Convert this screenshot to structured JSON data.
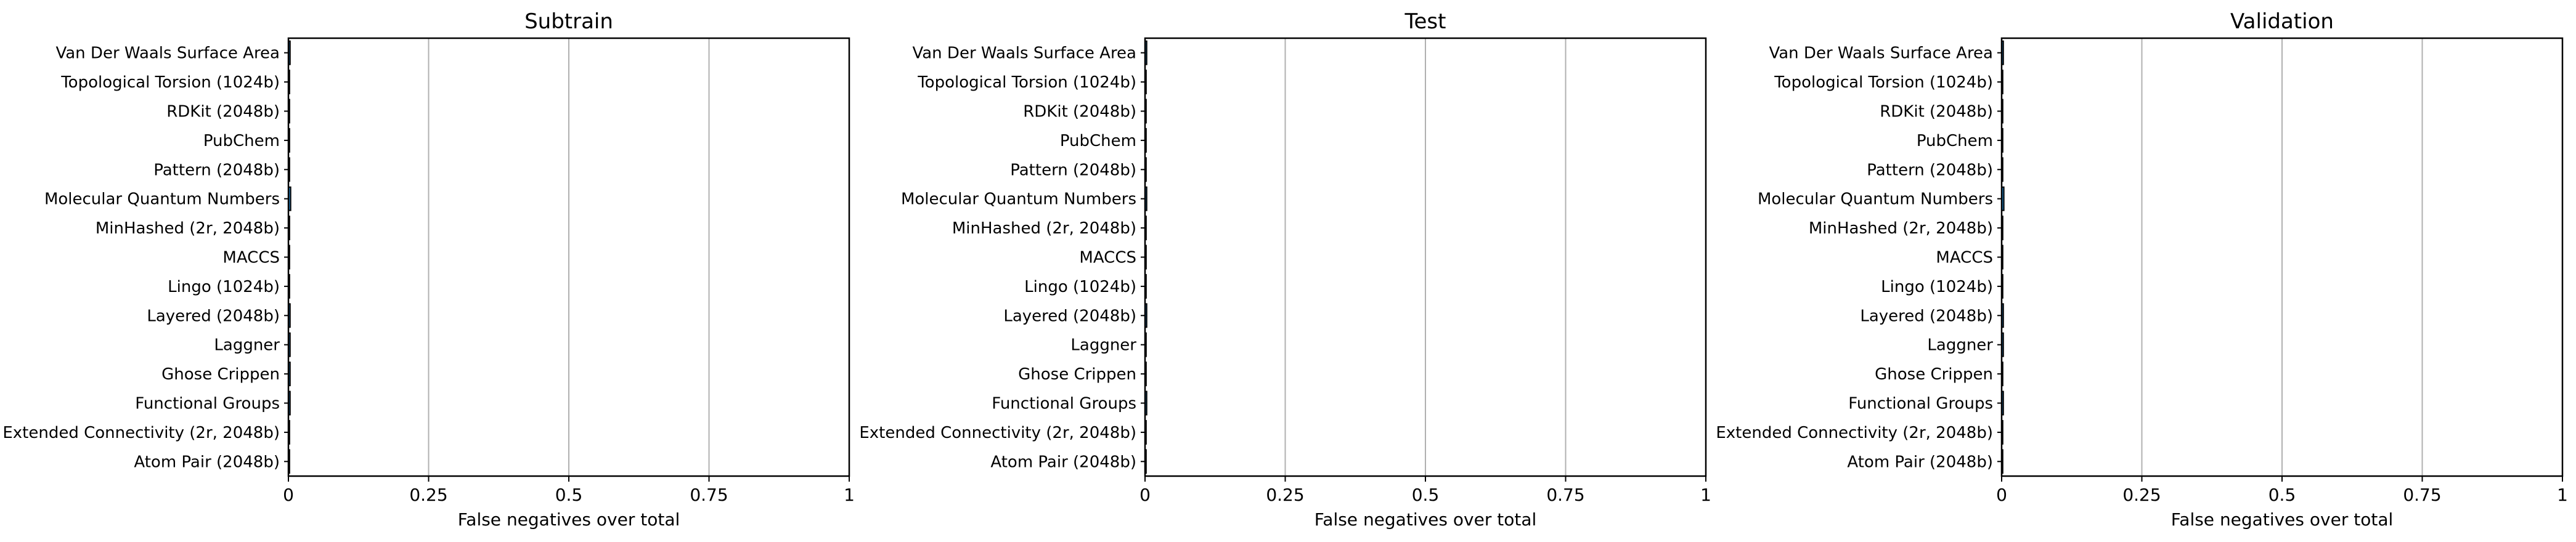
{
  "chart_data": [
    {
      "type": "bar",
      "orientation": "horizontal",
      "title": "Subtrain",
      "xlabel": "False negatives over total",
      "ylabel": "",
      "xlim": [
        0,
        1
      ],
      "xticks": [
        0,
        0.25,
        0.5,
        0.75,
        1
      ],
      "xtick_labels": [
        "0",
        "0.25",
        "0.5",
        "0.75",
        "1"
      ],
      "grid": "vertical",
      "categories": [
        "Van Der Waals Surface Area",
        "Topological Torsion (1024b)",
        "RDKit (2048b)",
        "PubChem",
        "Pattern (2048b)",
        "Molecular Quantum Numbers",
        "MinHashed (2r, 2048b)",
        "MACCS",
        "Lingo (1024b)",
        "Layered (2048b)",
        "Laggner",
        "Ghose Crippen",
        "Functional Groups",
        "Extended Connectivity (2r, 2048b)",
        "Atom Pair (2048b)"
      ],
      "values": [
        0.003,
        0.002,
        0.002,
        0.002,
        0.002,
        0.004,
        0.002,
        0.002,
        0.002,
        0.003,
        0.003,
        0.003,
        0.003,
        0.002,
        0.002
      ],
      "bar_color": "#1f77b4"
    },
    {
      "type": "bar",
      "orientation": "horizontal",
      "title": "Test",
      "xlabel": "False negatives over total",
      "ylabel": "",
      "xlim": [
        0,
        1
      ],
      "xticks": [
        0,
        0.25,
        0.5,
        0.75,
        1
      ],
      "xtick_labels": [
        "0",
        "0.25",
        "0.5",
        "0.75",
        "1"
      ],
      "grid": "vertical",
      "categories": [
        "Van Der Waals Surface Area",
        "Topological Torsion (1024b)",
        "RDKit (2048b)",
        "PubChem",
        "Pattern (2048b)",
        "Molecular Quantum Numbers",
        "MinHashed (2r, 2048b)",
        "MACCS",
        "Lingo (1024b)",
        "Layered (2048b)",
        "Laggner",
        "Ghose Crippen",
        "Functional Groups",
        "Extended Connectivity (2r, 2048b)",
        "Atom Pair (2048b)"
      ],
      "values": [
        0.003,
        0.002,
        0.002,
        0.002,
        0.002,
        0.003,
        0.002,
        0.002,
        0.002,
        0.003,
        0.002,
        0.002,
        0.003,
        0.002,
        0.002
      ],
      "bar_color": "#1f77b4"
    },
    {
      "type": "bar",
      "orientation": "horizontal",
      "title": "Validation",
      "xlabel": "False negatives over total",
      "ylabel": "",
      "xlim": [
        0,
        1
      ],
      "xticks": [
        0,
        0.25,
        0.5,
        0.75,
        1
      ],
      "xtick_labels": [
        "0",
        "0.25",
        "0.5",
        "0.75",
        "1"
      ],
      "grid": "vertical",
      "categories": [
        "Van Der Waals Surface Area",
        "Topological Torsion (1024b)",
        "RDKit (2048b)",
        "PubChem",
        "Pattern (2048b)",
        "Molecular Quantum Numbers",
        "MinHashed (2r, 2048b)",
        "MACCS",
        "Lingo (1024b)",
        "Layered (2048b)",
        "Laggner",
        "Ghose Crippen",
        "Functional Groups",
        "Extended Connectivity (2r, 2048b)",
        "Atom Pair (2048b)"
      ],
      "values": [
        0.003,
        0.002,
        0.002,
        0.002,
        0.002,
        0.004,
        0.002,
        0.002,
        0.002,
        0.003,
        0.003,
        0.002,
        0.003,
        0.002,
        0.002
      ],
      "bar_color": "#1f77b4"
    }
  ]
}
